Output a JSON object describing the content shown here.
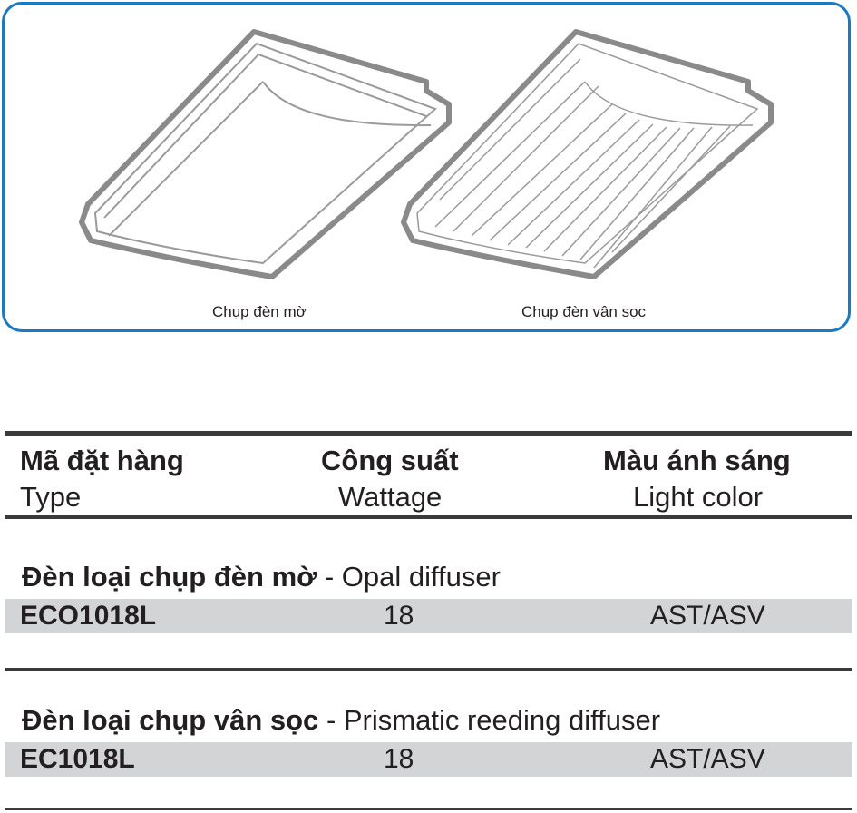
{
  "figure": {
    "captions": [
      "Chụp đèn mờ",
      "Chụp đèn vân sọc"
    ],
    "border_color": "#1b7ac2"
  },
  "table": {
    "headers": [
      {
        "vi": "Mã đặt hàng",
        "en": "Type"
      },
      {
        "vi": "Công suất",
        "en": "Wattage"
      },
      {
        "vi": "Màu ánh sáng",
        "en": "Light color"
      }
    ],
    "sections": [
      {
        "title_vi": "Đèn loại chụp đèn mờ",
        "title_en": "- Opal diffuser",
        "rows": [
          {
            "type": "ECO1018L",
            "wattage": "18",
            "light_color": "AST/ASV"
          }
        ]
      },
      {
        "title_vi": "Đèn loại chụp vân sọc",
        "title_en": "- Prismatic reeding diffuser",
        "rows": [
          {
            "type": "EC1018L",
            "wattage": "18",
            "light_color": "AST/ASV"
          }
        ]
      }
    ]
  }
}
